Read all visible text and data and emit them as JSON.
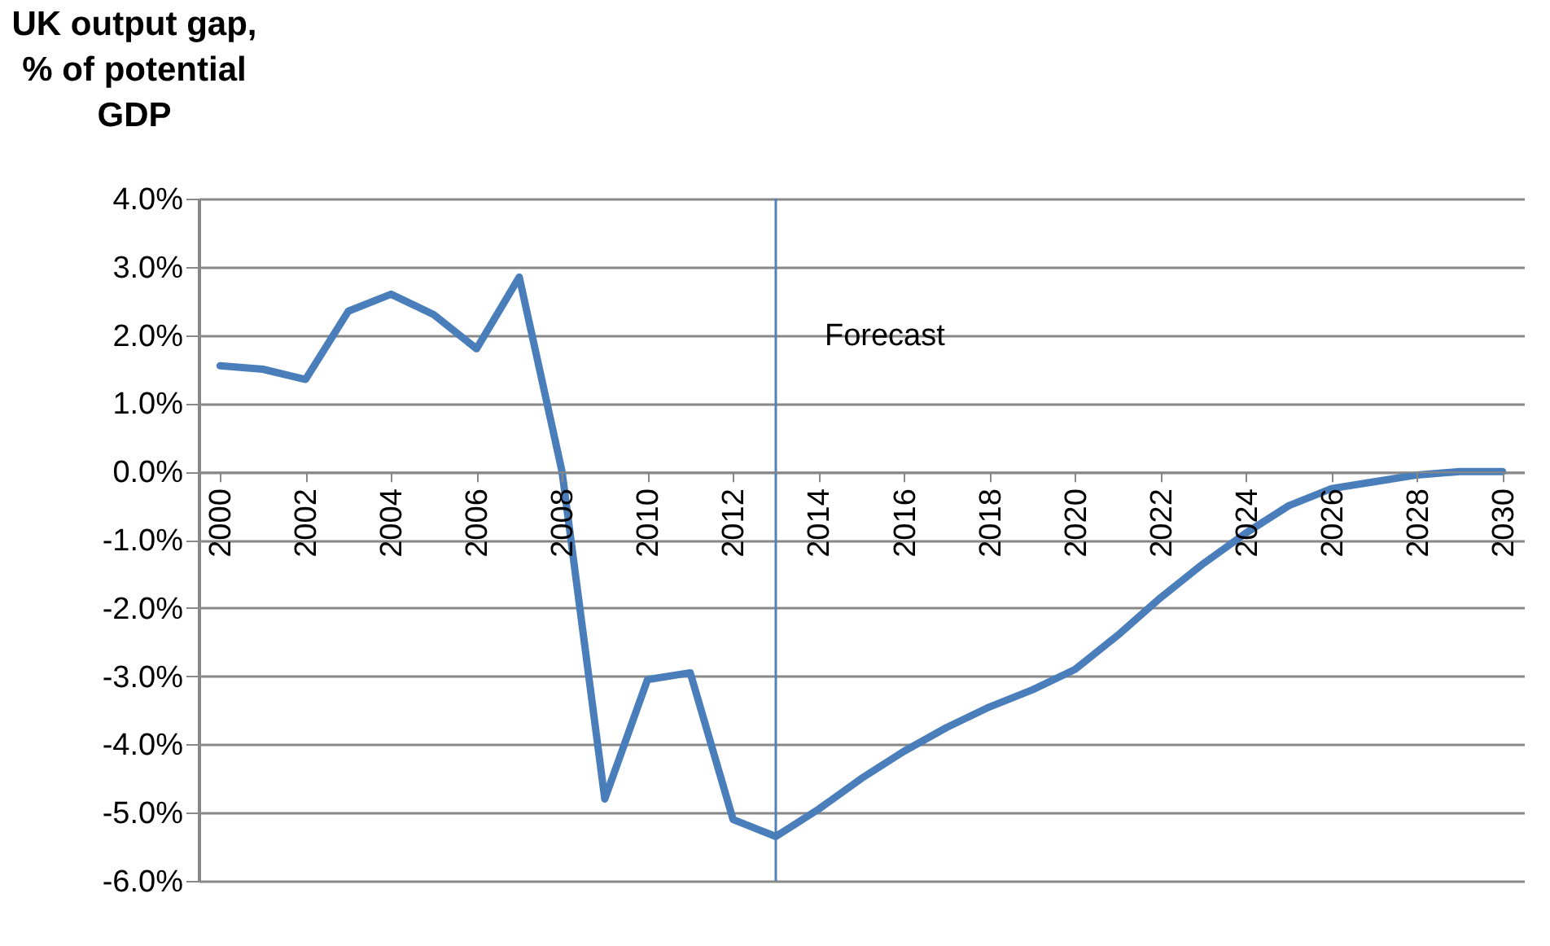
{
  "chart_data": {
    "type": "line",
    "ylabel": "UK output gap,\n% of potential\nGDP",
    "x": [
      2000,
      2001,
      2002,
      2003,
      2004,
      2005,
      2006,
      2007,
      2008,
      2009,
      2010,
      2011,
      2012,
      2013,
      2014,
      2015,
      2016,
      2017,
      2018,
      2019,
      2020,
      2021,
      2022,
      2023,
      2024,
      2025,
      2026,
      2027,
      2028,
      2029,
      2030
    ],
    "series": [
      {
        "color": "#4a7ebb",
        "values": [
          1.55,
          1.5,
          1.35,
          2.35,
          2.6,
          2.3,
          1.8,
          2.85,
          0.0,
          -4.8,
          -3.05,
          -2.95,
          -5.1,
          -5.35,
          -4.95,
          -4.5,
          -4.1,
          -3.75,
          -3.45,
          -3.2,
          -2.9,
          -2.4,
          -1.85,
          -1.35,
          -0.9,
          -0.5,
          -0.25,
          -0.15,
          -0.05,
          0.0,
          0.0
        ]
      }
    ],
    "xlim": [
      1999.5,
      2030.5
    ],
    "xticks": [
      2000,
      2002,
      2004,
      2006,
      2008,
      2010,
      2012,
      2014,
      2016,
      2018,
      2020,
      2022,
      2024,
      2026,
      2028,
      2030
    ],
    "ylim": [
      -6,
      4
    ],
    "yticks": [
      {
        "value": 4,
        "label": "4.0%"
      },
      {
        "value": 3,
        "label": "3.0%"
      },
      {
        "value": 2,
        "label": "2.0%"
      },
      {
        "value": 1,
        "label": "1.0%"
      },
      {
        "value": 0,
        "label": "0.0%"
      },
      {
        "value": -1,
        "label": "-1.0%"
      },
      {
        "value": -2,
        "label": "-2.0%"
      },
      {
        "value": -3,
        "label": "-3.0%"
      },
      {
        "value": -4,
        "label": "-4.0%"
      },
      {
        "value": -5,
        "label": "-5.0%"
      },
      {
        "value": -6,
        "label": "-6.0%"
      }
    ],
    "ref_lines": [
      {
        "axis": "x",
        "value": 2013,
        "label": "Forecast",
        "color": "#4f81bd"
      }
    ],
    "grid": "y",
    "legend": false,
    "marker": "none",
    "line_style": "solid"
  }
}
